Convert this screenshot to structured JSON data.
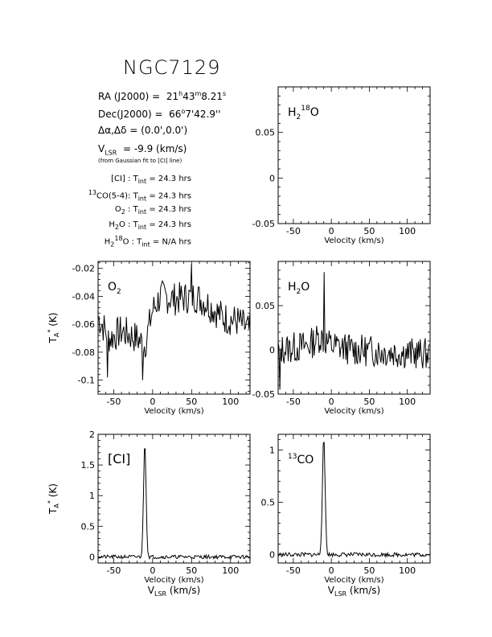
{
  "header": {
    "title": "NGC7129",
    "ra_label": "RA (J2000) =",
    "ra_value": "21h43m8.21s",
    "dec_label": "Dec(J2000) =",
    "dec_value": "66°7'42.9''",
    "offset_label": "Δα,Δδ =",
    "offset_value": "(0.0',0.0')",
    "vlsr_label": "VLSR =",
    "vlsr_value": "-9.9 (km/s)",
    "vlsr_note": "(from Gaussian fit to [CI] line)",
    "integration_times": [
      {
        "species": "[CI]",
        "tint": "24.3 hrs"
      },
      {
        "species": "13CO(5-4)",
        "tint": "24.3 hrs"
      },
      {
        "species": "O2",
        "tint": "24.3 hrs"
      },
      {
        "species": "H2O",
        "tint": "24.3 hrs"
      },
      {
        "species": "H218O",
        "tint": "N/A hrs"
      }
    ],
    "tint_label": "Tint ="
  },
  "colors": {
    "line": "#000000",
    "background": "#ffffff"
  },
  "chart_data": [
    {
      "type": "line",
      "id": "h218o",
      "label": "H218O",
      "xlim": [
        -70,
        130
      ],
      "ylim": [
        -0.05,
        0.1
      ],
      "xticks": [
        -50,
        0,
        50,
        100
      ],
      "yticks": [
        -0.05,
        0,
        0.05
      ],
      "ytick_labels": [
        "-0.05",
        "0",
        "0.05"
      ],
      "xlabel": "Velocity (km/s)",
      "ylabel": "",
      "grid": false,
      "has_data": false,
      "noise": {
        "baseline": 0,
        "amplitude": 0,
        "seed": 1
      },
      "peaks": []
    },
    {
      "type": "line",
      "id": "o2",
      "label": "O2",
      "xlim": [
        -70,
        125
      ],
      "ylim": [
        -0.11,
        -0.015
      ],
      "xticks": [
        -50,
        0,
        50,
        100
      ],
      "yticks": [
        -0.1,
        -0.08,
        -0.06,
        -0.04,
        -0.02
      ],
      "ytick_labels": [
        "-0.1",
        "-0.08",
        "-0.06",
        "-0.04",
        "-0.02"
      ],
      "xlabel": "Velocity (km/s)",
      "ylabel": "TA* (K)",
      "grid": false,
      "has_data": true,
      "profile": [
        [
          -70,
          -0.055
        ],
        [
          -55,
          -0.07
        ],
        [
          -40,
          -0.065
        ],
        [
          -20,
          -0.07
        ],
        [
          -10,
          -0.075
        ],
        [
          0,
          -0.05
        ],
        [
          10,
          -0.04
        ],
        [
          30,
          -0.042
        ],
        [
          55,
          -0.04
        ],
        [
          70,
          -0.045
        ],
        [
          90,
          -0.055
        ],
        [
          110,
          -0.058
        ],
        [
          125,
          -0.065
        ]
      ],
      "noise": {
        "amplitude": 0.012,
        "seed": 7
      },
      "peaks": [
        {
          "x": 50,
          "y": -0.017
        },
        {
          "x": -13,
          "y": -0.1
        },
        {
          "x": -58,
          "y": -0.098
        }
      ]
    },
    {
      "type": "line",
      "id": "h2o",
      "label": "H2O",
      "xlim": [
        -70,
        130
      ],
      "ylim": [
        -0.05,
        0.1
      ],
      "xticks": [
        -50,
        0,
        50,
        100
      ],
      "yticks": [
        -0.05,
        0,
        0.05
      ],
      "ytick_labels": [
        "-0.05",
        "0",
        "0.05"
      ],
      "xlabel": "Velocity (km/s)",
      "ylabel": "",
      "grid": false,
      "has_data": true,
      "profile": [
        [
          -70,
          0.0
        ],
        [
          -30,
          0.005
        ],
        [
          -15,
          0.015
        ],
        [
          0,
          0.005
        ],
        [
          30,
          0.0
        ],
        [
          130,
          -0.005
        ]
      ],
      "noise": {
        "amplitude": 0.018,
        "seed": 13
      },
      "peaks": [
        {
          "x": -10,
          "y": 0.088
        },
        {
          "x": -68,
          "y": -0.045
        }
      ]
    },
    {
      "type": "line",
      "id": "ci",
      "label": "[CI]",
      "xlim": [
        -70,
        125
      ],
      "ylim": [
        -0.1,
        2.0
      ],
      "xticks": [
        -50,
        0,
        50,
        100
      ],
      "yticks": [
        0,
        0.5,
        1,
        1.5,
        2
      ],
      "ytick_labels": [
        "0",
        "0.5",
        "1",
        "1.5",
        "2"
      ],
      "xlabel": "Velocity (km/s)",
      "xlabel2": "VLSR (km/s)",
      "ylabel": "TA* (K)",
      "grid": false,
      "has_data": true,
      "profile": [
        [
          -70,
          0.0
        ],
        [
          125,
          0.0
        ]
      ],
      "noise": {
        "amplitude": 0.03,
        "seed": 21
      },
      "gaussian": {
        "center": -10,
        "amplitude": 1.88,
        "sigma": 1.6
      }
    },
    {
      "type": "line",
      "id": "13co",
      "label": "13CO",
      "xlim": [
        -70,
        130
      ],
      "ylim": [
        -0.08,
        1.15
      ],
      "xticks": [
        -50,
        0,
        50,
        100
      ],
      "yticks": [
        0,
        0.5,
        1
      ],
      "ytick_labels": [
        "0",
        "0.5",
        "1"
      ],
      "xlabel": "Velocity (km/s)",
      "xlabel2": "VLSR (km/s)",
      "ylabel": "",
      "grid": false,
      "has_data": true,
      "profile": [
        [
          -70,
          0.0
        ],
        [
          130,
          0.0
        ]
      ],
      "noise": {
        "amplitude": 0.02,
        "seed": 33
      },
      "gaussian": {
        "center": -10,
        "amplitude": 1.1,
        "sigma": 1.8
      }
    }
  ]
}
